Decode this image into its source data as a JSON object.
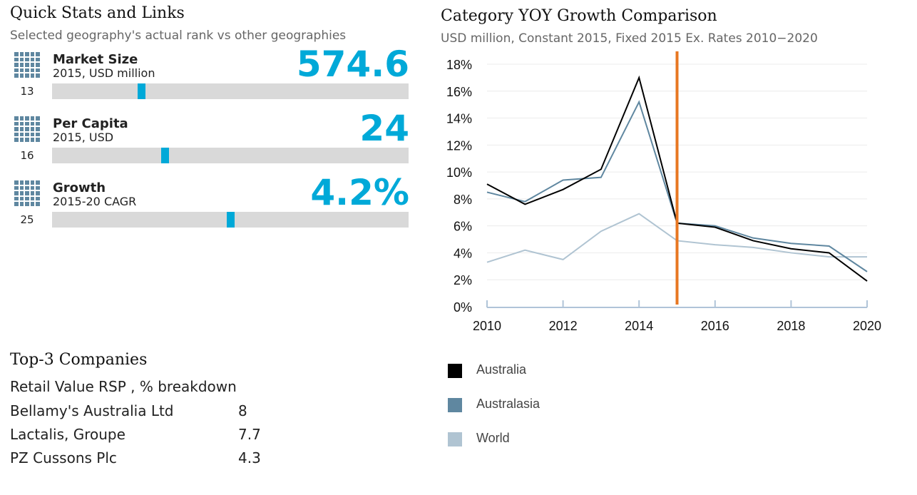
{
  "quick": {
    "title": "Quick Stats and Links",
    "subtitle": "Selected geography's actual rank vs other geographies",
    "stats": [
      {
        "label": "Market Size",
        "sub": "2015, USD million",
        "value": "574.6",
        "rank": "13",
        "position": 0.25
      },
      {
        "label": "Per Capita",
        "sub": "2015, USD",
        "value": "24",
        "rank": "16",
        "position": 0.315
      },
      {
        "label": "Growth",
        "sub": "2015-20 CAGR",
        "value": "4.2%",
        "rank": "25",
        "position": 0.5
      }
    ]
  },
  "companies": {
    "title": "Top-3 Companies",
    "subtitle": "Retail Value RSP , % breakdown",
    "rows": [
      {
        "name": "Bellamy's Australia Ltd",
        "value": "8"
      },
      {
        "name": "Lactalis, Groupe",
        "value": "7.7"
      },
      {
        "name": "PZ Cussons Plc",
        "value": "4.3"
      }
    ]
  },
  "chart_data": {
    "type": "line",
    "title": "Category YOY Growth Comparison",
    "subtitle": "USD million, Constant 2015, Fixed 2015 Ex. Rates  2010−2020",
    "x": [
      2010,
      2011,
      2012,
      2013,
      2014,
      2015,
      2016,
      2017,
      2018,
      2019,
      2020
    ],
    "xticks": [
      "2010",
      "2012",
      "2014",
      "2016",
      "2018",
      "2020"
    ],
    "yticks": [
      "0%",
      "2%",
      "4%",
      "6%",
      "8%",
      "10%",
      "12%",
      "14%",
      "16%",
      "18%"
    ],
    "ylim": [
      0,
      18
    ],
    "marker_year": 2015,
    "marker_color": "#e87722",
    "grid": true,
    "legend_position": "bottom",
    "series": [
      {
        "name": "Australia",
        "color": "#000000",
        "values": [
          9.1,
          7.6,
          8.7,
          10.2,
          17.0,
          6.2,
          5.9,
          4.9,
          4.3,
          4.0,
          1.9
        ]
      },
      {
        "name": "Australasia",
        "color": "#5f87a0",
        "values": [
          8.5,
          7.8,
          9.4,
          9.6,
          15.2,
          6.2,
          6.0,
          5.1,
          4.7,
          4.5,
          2.6
        ]
      },
      {
        "name": "World",
        "color": "#b0c4d2",
        "values": [
          3.3,
          4.2,
          3.5,
          5.6,
          6.9,
          4.9,
          4.6,
          4.4,
          4.0,
          3.7,
          3.7
        ]
      }
    ]
  }
}
